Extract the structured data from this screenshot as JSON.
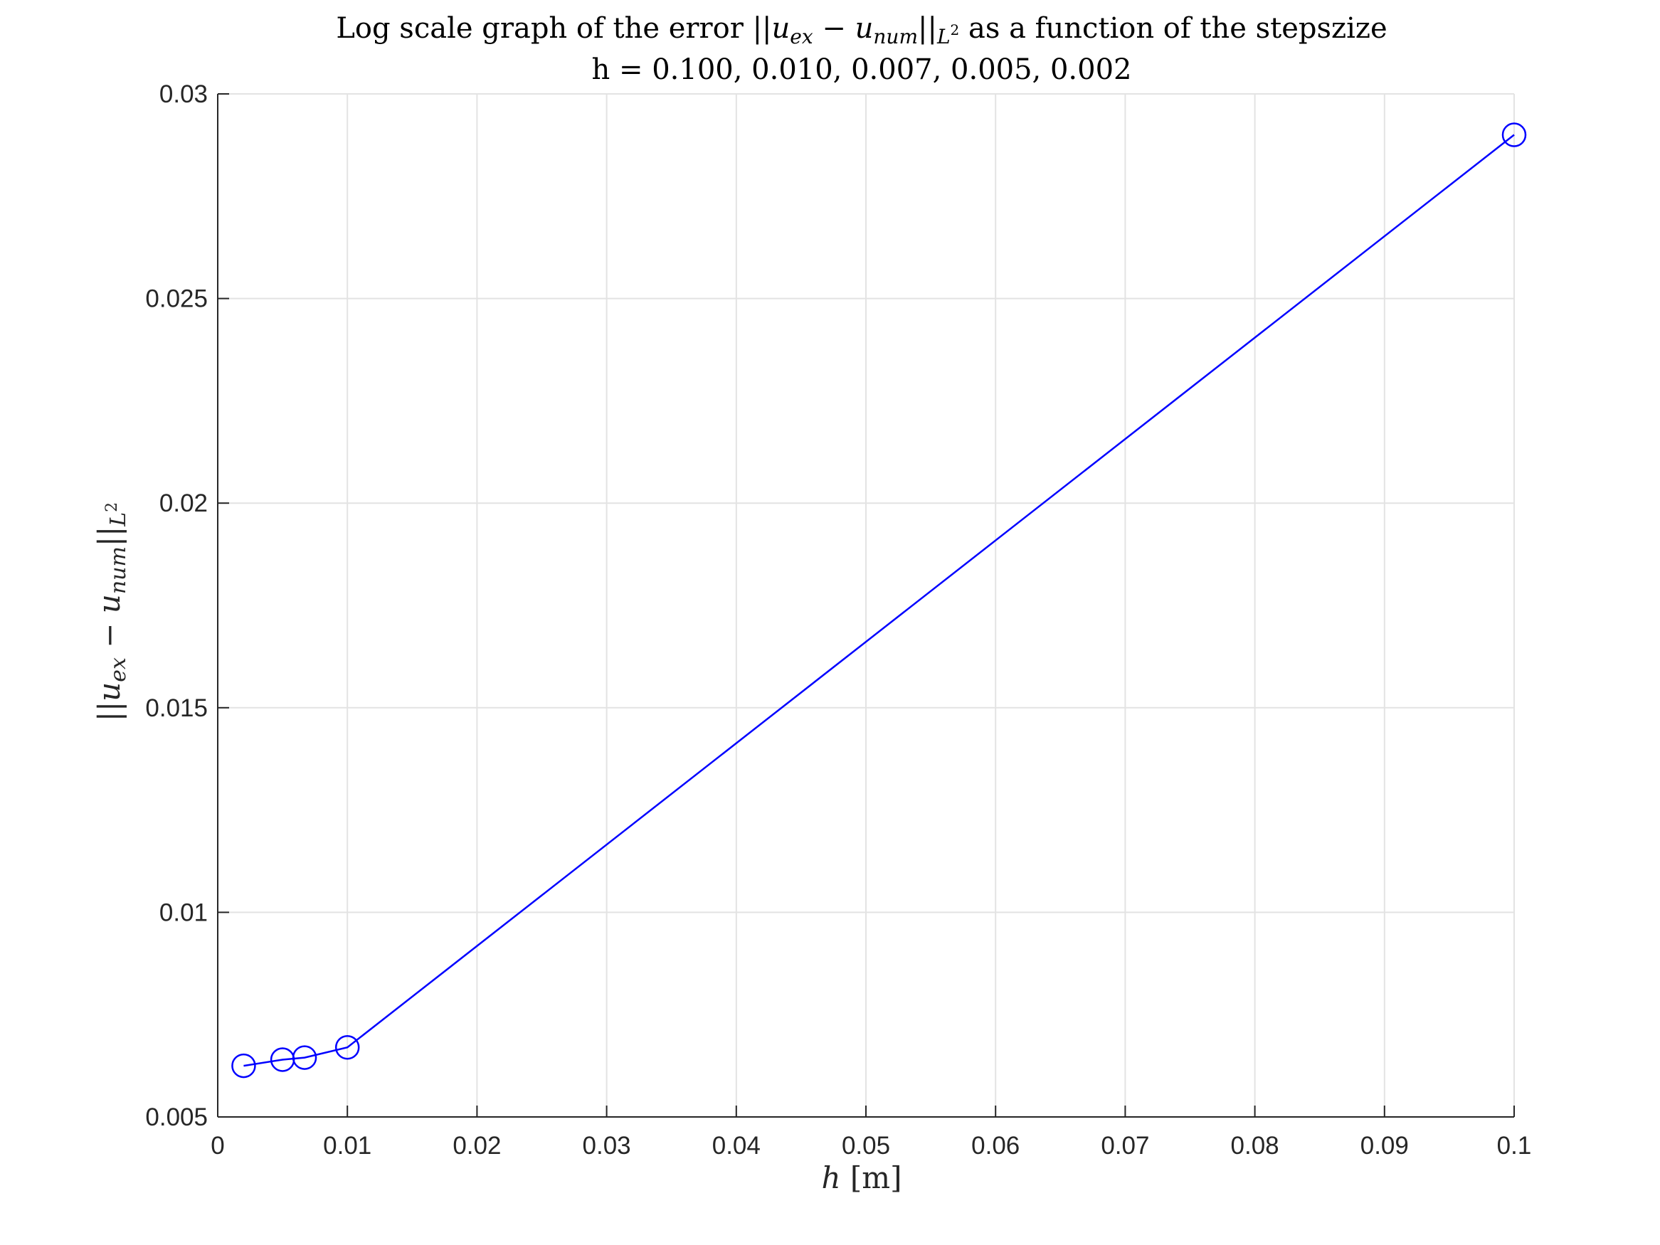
{
  "chart_data": {
    "type": "line",
    "title": {
      "prefix": "Log scale graph of the error ",
      "norm_u": "u",
      "norm_ex": "ex",
      "norm_minus": " − ",
      "norm_num": "num",
      "norm_space": "L",
      "norm_sup": "2",
      "suffix": " as a function of the stepszize",
      "line2": "h = 0.100, 0.010, 0.007, 0.005, 0.002"
    },
    "xlabel": {
      "var": "h",
      "unit": " [m]"
    },
    "ylabel": {
      "u": "u",
      "ex": "ex",
      "minus": " − ",
      "num": "num",
      "space": "L",
      "sup": "2"
    },
    "xlim": [
      0,
      0.1
    ],
    "ylim": [
      0.005,
      0.03
    ],
    "xticks": [
      0,
      0.01,
      0.02,
      0.03,
      0.04,
      0.05,
      0.06,
      0.07,
      0.08,
      0.09,
      0.1
    ],
    "xtick_labels": [
      "0",
      "0.01",
      "0.02",
      "0.03",
      "0.04",
      "0.05",
      "0.06",
      "0.07",
      "0.08",
      "0.09",
      "0.1"
    ],
    "yticks": [
      0.005,
      0.01,
      0.015,
      0.02,
      0.025,
      0.03
    ],
    "ytick_labels": [
      "0.005",
      "0.01",
      "0.015",
      "0.02",
      "0.025",
      "0.03"
    ],
    "grid": true,
    "legend": "none",
    "series": [
      {
        "color": "#0000ff",
        "marker": "circle",
        "x": [
          0.1,
          0.01,
          0.0067,
          0.005,
          0.002
        ],
        "y": [
          0.029,
          0.0067,
          0.00645,
          0.0064,
          0.00625
        ]
      }
    ]
  }
}
